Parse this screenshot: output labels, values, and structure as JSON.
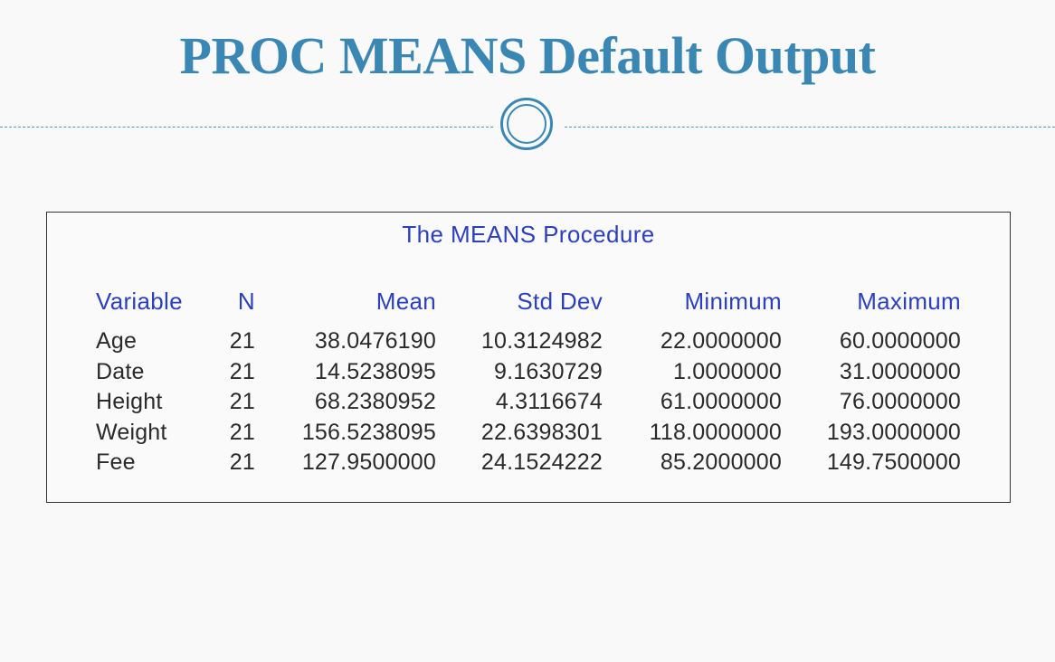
{
  "slide": {
    "title": "PROC MEANS Default Output"
  },
  "output": {
    "procedure_title": "The MEANS Procedure",
    "columns": [
      "Variable",
      "N",
      "Mean",
      "Std Dev",
      "Minimum",
      "Maximum"
    ],
    "rows": [
      [
        "Age",
        "21",
        "38.0476190",
        "10.3124982",
        "22.0000000",
        "60.0000000"
      ],
      [
        "Date",
        "21",
        "14.5238095",
        "9.1630729",
        "1.0000000",
        "31.0000000"
      ],
      [
        "Height",
        "21",
        "68.2380952",
        "4.3116674",
        "61.0000000",
        "76.0000000"
      ],
      [
        "Weight",
        "21",
        "156.5238095",
        "22.6398301",
        "118.0000000",
        "193.0000000"
      ],
      [
        "Fee",
        "21",
        "127.9500000",
        "24.1524222",
        "85.2000000",
        "149.7500000"
      ]
    ]
  },
  "colors": {
    "title": "#3a87b4",
    "header_text": "#2c3fbe",
    "body_text": "#2a2a2a",
    "background": "#f9f9f9"
  },
  "icons": {
    "divider_ornament": "double-circle-icon"
  }
}
